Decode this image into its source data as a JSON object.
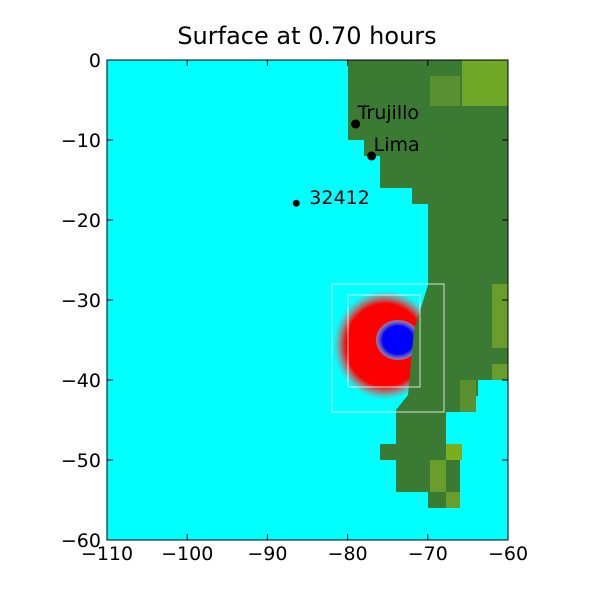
{
  "chart_data": {
    "type": "map",
    "title": "Surface at 0.70 hours",
    "xlim": [
      -110,
      -60
    ],
    "ylim": [
      -60,
      0
    ],
    "xticks": [
      {
        "value": -110,
        "label": "−110"
      },
      {
        "value": -100,
        "label": "−100"
      },
      {
        "value": -90,
        "label": "−90"
      },
      {
        "value": -80,
        "label": "−80"
      },
      {
        "value": -70,
        "label": "−70"
      },
      {
        "value": -60,
        "label": "−60"
      }
    ],
    "yticks": [
      0,
      {
        "value": -10,
        "label": "−10"
      },
      {
        "value": -20,
        "label": "−20"
      },
      {
        "value": -30,
        "label": "−30"
      },
      {
        "value": -40,
        "label": "−40"
      },
      {
        "value": -50,
        "label": "−50"
      },
      {
        "value": -60,
        "label": "−60"
      }
    ],
    "point_labels": [
      "Trujillo",
      "Lima",
      "32412"
    ],
    "x": [
      -79,
      -77,
      -86.4
    ],
    "values": [
      -8,
      -12,
      -17.9
    ],
    "color": "#000000"
  }
}
